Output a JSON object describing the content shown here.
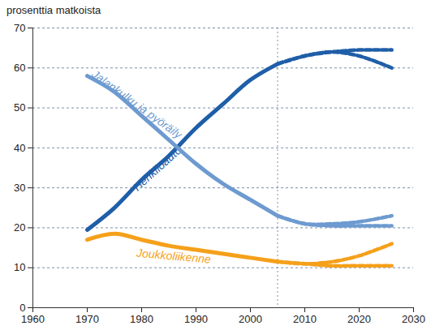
{
  "chart_data": {
    "type": "line",
    "y_label": "prosenttia matkoista",
    "x": [
      1970,
      1975,
      1980,
      1985,
      1990,
      1995,
      2000,
      2005,
      2010,
      2015,
      2020,
      2026
    ],
    "series": [
      {
        "name": "Henkilöauto",
        "color": "#1f5ea8",
        "values": [
          19.5,
          25,
          32,
          38,
          45,
          51,
          57,
          61,
          null,
          null,
          null,
          null
        ]
      },
      {
        "color": "#1f5ea8",
        "line_style": "dashed",
        "values": [
          null,
          null,
          null,
          null,
          null,
          null,
          null,
          61,
          63,
          64,
          64.5,
          64.5
        ]
      },
      {
        "color": "#1f5ea8",
        "line_style": "dashed",
        "values": [
          null,
          null,
          null,
          null,
          null,
          null,
          null,
          61,
          63,
          64,
          63,
          60
        ]
      },
      {
        "name": "Jalankulku ja pyöräily",
        "color": "#6d9ad0",
        "values": [
          58,
          54,
          48,
          42,
          36,
          31,
          27,
          23,
          null,
          null,
          null,
          null
        ]
      },
      {
        "color": "#6d9ad0",
        "line_style": "dashed",
        "values": [
          null,
          null,
          null,
          null,
          null,
          null,
          null,
          23,
          21,
          20.5,
          20.5,
          20.5
        ]
      },
      {
        "color": "#6d9ad0",
        "line_style": "dashed",
        "values": [
          null,
          null,
          null,
          null,
          null,
          null,
          null,
          23,
          21,
          21,
          21.5,
          23
        ]
      },
      {
        "name": "Joukkoliikenne",
        "color": "#f5a01a",
        "values": [
          17,
          18.5,
          17,
          15.5,
          14.5,
          13.5,
          12.5,
          11.5,
          null,
          null,
          null,
          null
        ]
      },
      {
        "color": "#f5a01a",
        "line_style": "dashed",
        "values": [
          null,
          null,
          null,
          null,
          null,
          null,
          null,
          11.5,
          11,
          10.5,
          10.5,
          10.5
        ]
      },
      {
        "color": "#f5a01a",
        "line_style": "dashed",
        "values": [
          null,
          null,
          null,
          null,
          null,
          null,
          null,
          11.5,
          11,
          11.5,
          13,
          16
        ]
      }
    ],
    "xline": 2005,
    "xlim": [
      1960,
      2030
    ],
    "xticks": [
      1960,
      1970,
      1980,
      1990,
      2000,
      2010,
      2020,
      2030
    ],
    "ylim": [
      0,
      70
    ],
    "yticks": [
      0,
      10,
      20,
      30,
      40,
      50,
      60,
      70
    ],
    "grid": true
  }
}
